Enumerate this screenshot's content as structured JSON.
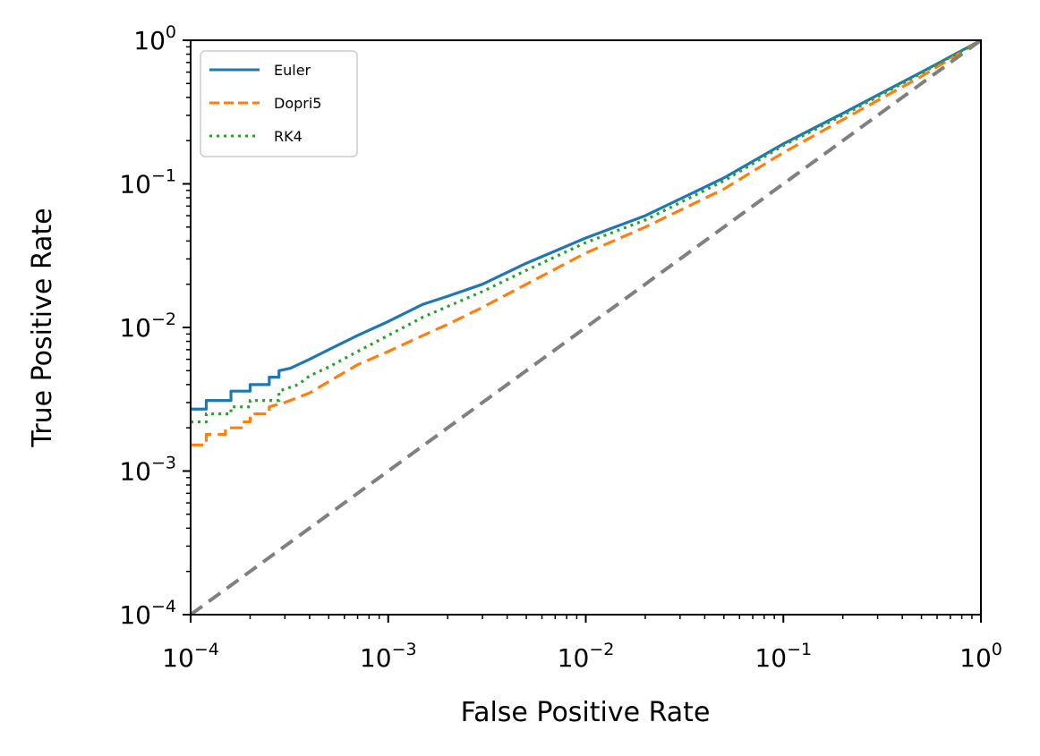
{
  "chart_data": {
    "type": "line",
    "title": "",
    "xlabel": "False Positive Rate",
    "ylabel": "True Positive Rate",
    "xscale": "log",
    "yscale": "log",
    "xlim": [
      0.0001,
      1
    ],
    "ylim": [
      0.0001,
      1
    ],
    "grid": false,
    "legend_position": "top-left",
    "xticks": [
      {
        "value": 0.0001,
        "base": "10",
        "exp": "−4"
      },
      {
        "value": 0.001,
        "base": "10",
        "exp": "−3"
      },
      {
        "value": 0.01,
        "base": "10",
        "exp": "−2"
      },
      {
        "value": 0.1,
        "base": "10",
        "exp": "−1"
      },
      {
        "value": 1,
        "base": "10",
        "exp": "0"
      }
    ],
    "yticks": [
      {
        "value": 0.0001,
        "base": "10",
        "exp": "−4"
      },
      {
        "value": 0.001,
        "base": "10",
        "exp": "−3"
      },
      {
        "value": 0.01,
        "base": "10",
        "exp": "−2"
      },
      {
        "value": 0.1,
        "base": "10",
        "exp": "−1"
      },
      {
        "value": 1,
        "base": "10",
        "exp": "0"
      }
    ],
    "series": [
      {
        "name": "Euler",
        "color": "#1f77b4",
        "style": "solid",
        "x": [
          0.0001,
          0.00012,
          0.00012,
          0.00016,
          0.00016,
          0.0002,
          0.0002,
          0.00025,
          0.00025,
          0.00028,
          0.00028,
          0.00032,
          0.0004,
          0.0005,
          0.0007,
          0.001,
          0.0015,
          0.002,
          0.003,
          0.005,
          0.01,
          0.02,
          0.05,
          0.1,
          0.2,
          0.5,
          1.0
        ],
        "y": [
          0.0027,
          0.0027,
          0.0031,
          0.0031,
          0.0036,
          0.0036,
          0.004,
          0.004,
          0.0045,
          0.0045,
          0.005,
          0.0052,
          0.006,
          0.007,
          0.0088,
          0.011,
          0.0145,
          0.0165,
          0.02,
          0.028,
          0.042,
          0.06,
          0.11,
          0.19,
          0.31,
          0.6,
          1.0
        ]
      },
      {
        "name": "Dopri5",
        "color": "#ff7f0e",
        "style": "dashed",
        "x": [
          0.0001,
          0.00012,
          0.00012,
          0.00015,
          0.00015,
          0.00018,
          0.00018,
          0.0002,
          0.0002,
          0.00025,
          0.00025,
          0.0003,
          0.0004,
          0.0005,
          0.0007,
          0.001,
          0.0015,
          0.002,
          0.003,
          0.005,
          0.01,
          0.02,
          0.05,
          0.1,
          0.2,
          0.5,
          1.0
        ],
        "y": [
          0.00152,
          0.00152,
          0.0018,
          0.0018,
          0.002,
          0.002,
          0.0022,
          0.0022,
          0.0025,
          0.0025,
          0.0028,
          0.003,
          0.0035,
          0.0042,
          0.0055,
          0.0068,
          0.0088,
          0.0105,
          0.0138,
          0.02,
          0.033,
          0.05,
          0.092,
          0.165,
          0.28,
          0.56,
          1.0
        ]
      },
      {
        "name": "RK4",
        "color": "#2ca02c",
        "style": "dotted",
        "x": [
          0.0001,
          0.00012,
          0.00012,
          0.00016,
          0.00016,
          0.0002,
          0.0002,
          0.00028,
          0.00028,
          0.00035,
          0.0004,
          0.0005,
          0.0007,
          0.001,
          0.0015,
          0.002,
          0.003,
          0.005,
          0.01,
          0.02,
          0.05,
          0.1,
          0.2,
          0.5,
          1.0
        ],
        "y": [
          0.0022,
          0.0022,
          0.0025,
          0.0025,
          0.0028,
          0.0028,
          0.0031,
          0.0031,
          0.0036,
          0.004,
          0.0046,
          0.0053,
          0.0068,
          0.0088,
          0.0118,
          0.014,
          0.0178,
          0.025,
          0.039,
          0.056,
          0.105,
          0.185,
          0.3,
          0.59,
          1.0
        ]
      },
      {
        "name": "Random (diagonal)",
        "color": "#808080",
        "style": "dashed",
        "in_legend": false,
        "x": [
          0.0001,
          1
        ],
        "y": [
          0.0001,
          1
        ]
      }
    ]
  }
}
